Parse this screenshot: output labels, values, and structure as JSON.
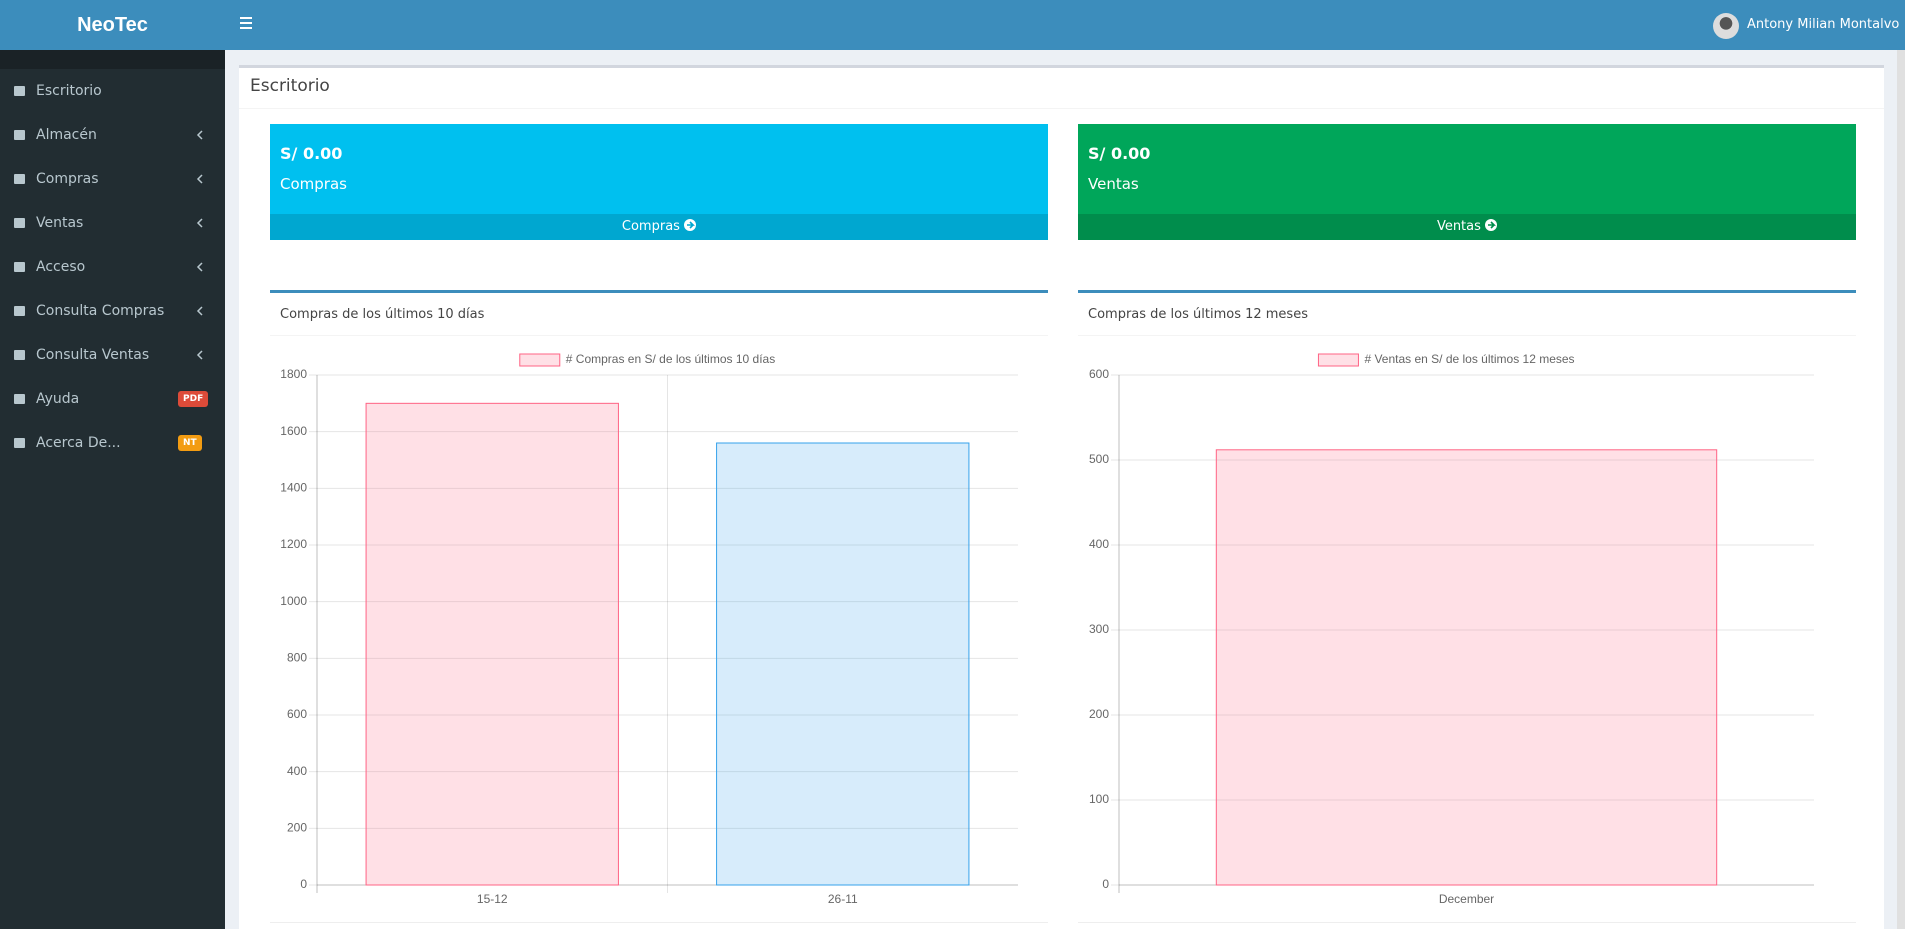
{
  "header": {
    "brand": "NeoTec",
    "user": "Antony Milian Montalvo"
  },
  "sidebar": {
    "items": [
      {
        "label": "Escritorio"
      },
      {
        "label": "Almacén",
        "submenu": true
      },
      {
        "label": "Compras",
        "submenu": true
      },
      {
        "label": "Ventas",
        "submenu": true
      },
      {
        "label": "Acceso",
        "submenu": true
      },
      {
        "label": "Consulta Compras",
        "submenu": true
      },
      {
        "label": "Consulta Ventas",
        "submenu": true
      },
      {
        "label": "Ayuda",
        "badge": "PDF",
        "badge_color": "#dd4b39"
      },
      {
        "label": "Acerca De...",
        "badge": "NT",
        "badge_color": "#f39c12"
      }
    ]
  },
  "page": {
    "title": "Escritorio"
  },
  "stat_boxes": [
    {
      "amount": "S/ 0.00",
      "label": "Compras",
      "link": "Compras",
      "color": "#00c0ef",
      "footer_color": "#00a7d0"
    },
    {
      "amount": "S/ 0.00",
      "label": "Ventas",
      "link": "Ventas",
      "color": "#00a65a",
      "footer_color": "#008d4c"
    }
  ],
  "chart_data": [
    {
      "type": "bar",
      "title": "Compras de los últimos 10 días",
      "categories": [
        "15-12",
        "26-11"
      ],
      "series": [
        {
          "name": "# Compras en S/ de los últimos 10 días",
          "colors": [
            "#ff6384",
            "#36a2eb"
          ],
          "values": [
            1700,
            1560
          ]
        }
      ],
      "ylim": [
        0,
        1800
      ],
      "yticks": [
        0,
        200,
        400,
        600,
        800,
        1000,
        1200,
        1400,
        1600,
        1800
      ],
      "grid": true
    },
    {
      "type": "bar",
      "title": "Compras de los últimos 12 meses",
      "categories": [
        "December"
      ],
      "series": [
        {
          "name": "# Ventas en S/ de los últimos 12 meses",
          "colors": [
            "#ff6384"
          ],
          "values": [
            512
          ]
        }
      ],
      "ylim": [
        0,
        600
      ],
      "yticks": [
        0,
        100,
        200,
        300,
        400,
        500,
        600
      ],
      "grid": true
    }
  ]
}
